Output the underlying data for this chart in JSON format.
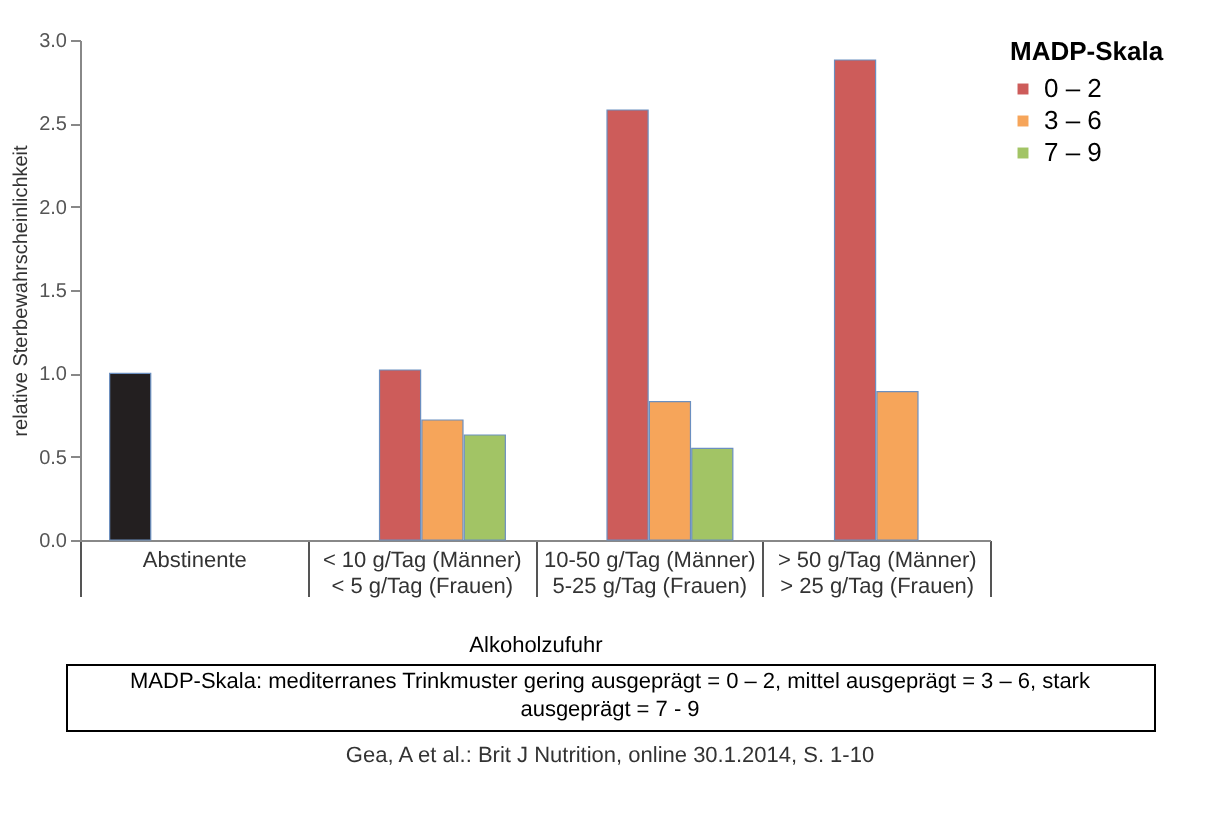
{
  "chart_data": {
    "type": "bar",
    "categories": [
      "Abstinente",
      "< 10 g/Tag (Männer)\n< 5 g/Tag (Frauen)",
      "10-50 g/Tag (Männer)\n5-25 g/Tag (Frauen)",
      "> 50 g/Tag (Männer)\n> 25 g/Tag (Frauen)"
    ],
    "series": [
      {
        "color": "#231f20",
        "values": [
          1.0,
          null,
          null,
          null
        ]
      },
      {
        "name": "0 – 2",
        "color": "#cd5c5a",
        "values": [
          null,
          1.02,
          2.58,
          2.88
        ]
      },
      {
        "name": "3 – 6",
        "color": "#f6a55a",
        "values": [
          null,
          0.72,
          0.83,
          0.89
        ]
      },
      {
        "name": "7 – 9",
        "color": "#a2c465",
        "values": [
          null,
          0.63,
          0.55,
          null
        ]
      }
    ],
    "xlabel": "Alkoholzufuhr",
    "ylabel": "relative Sterbewahrscheinlichkeit",
    "legend_title": "MADP-Skala",
    "ylim": [
      0,
      3
    ],
    "yticks": [
      {
        "value": 0,
        "label": "0.0"
      },
      0.5,
      {
        "value": 1,
        "label": "1.0"
      },
      1.5,
      {
        "value": 2,
        "label": "2.0"
      },
      2.5,
      {
        "value": 3,
        "label": "3.0"
      }
    ],
    "grid": false,
    "legend": "right",
    "annotations": [
      "MADP-Skala: mediterranes Trinkmuster gering ausgeprägt = 0 – 2, mittel ausgeprägt = 3 – 6, stark ausgeprägt = 7 - 9",
      "Gea, A et al.: Brit J Nutrition, online 30.1.2014, S. 1-10"
    ]
  }
}
